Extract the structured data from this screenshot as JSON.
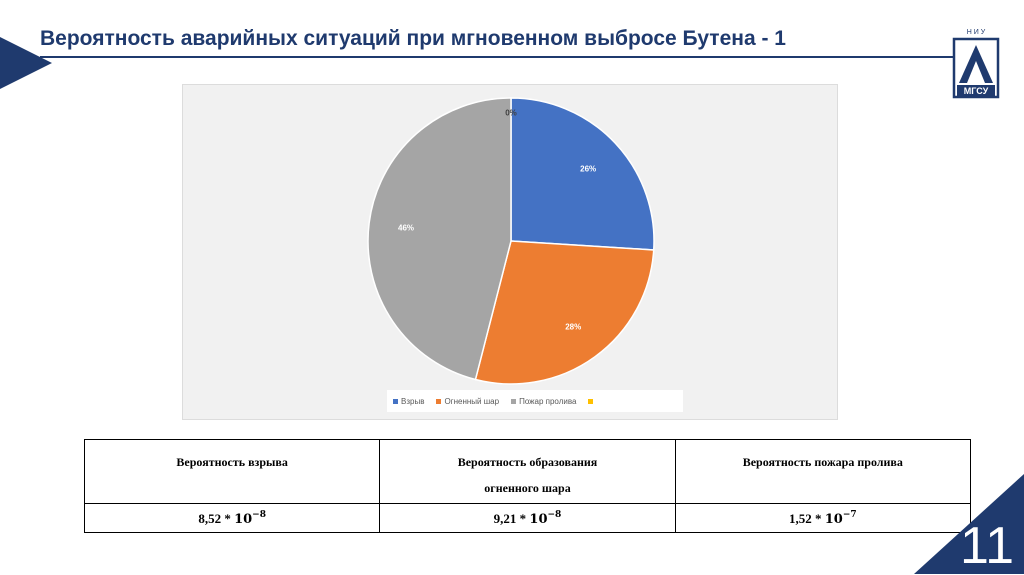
{
  "slide": {
    "title": "Вероятность аварийных ситуаций при мгновенном выбросе Бутена - 1",
    "page_number": "11",
    "logo": {
      "label": "МГСУ",
      "top_letters": "Н И У"
    },
    "colors": {
      "brand": "#1f3a6e"
    }
  },
  "chart_data": {
    "type": "pie",
    "title": "",
    "categories": [
      "Взрыв",
      "Огненный шар",
      "Пожар пролива",
      ""
    ],
    "values": [
      26,
      28,
      46,
      0
    ],
    "labels": [
      "26%",
      "28%",
      "46%",
      "0%"
    ],
    "colors": [
      "#4472c4",
      "#ed7d31",
      "#a5a5a5",
      "#ffc000"
    ],
    "legend": "bottom"
  },
  "table": {
    "headers": [
      [
        "Вероятность взрыва"
      ],
      [
        "Вероятность образования",
        "огненного шара"
      ],
      [
        "Вероятность пожара пролива"
      ]
    ],
    "values": [
      {
        "mantissa": "8,52 * ",
        "base": "10",
        "exp": "−8"
      },
      {
        "mantissa": "9,21 * ",
        "base": "10",
        "exp": "−8"
      },
      {
        "mantissa": "1,52 * ",
        "base": "10",
        "exp": "−7"
      }
    ]
  }
}
